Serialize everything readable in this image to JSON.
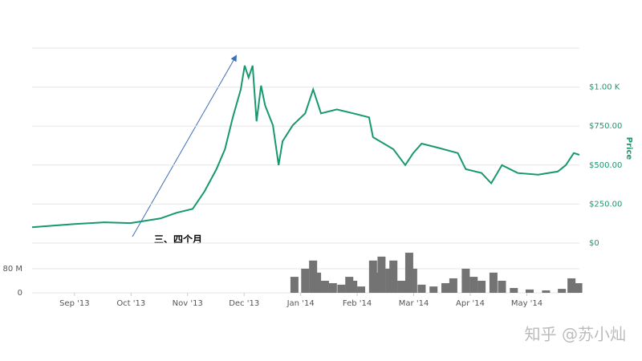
{
  "chart_data": [
    {
      "type": "line",
      "y_label": "Price",
      "annotation": "三、四个月",
      "color": "#17986e",
      "xlim": [
        -0.75,
        8.93
      ],
      "x": [
        -0.75,
        0,
        0.53,
        0.99,
        1.52,
        1.8,
        2.09,
        2.3,
        2.51,
        2.66,
        2.8,
        2.94,
        3.01,
        3.08,
        3.15,
        3.22,
        3.3,
        3.37,
        3.51,
        3.61,
        3.68,
        3.86,
        4.08,
        4.22,
        4.36,
        4.64,
        4.93,
        5.21,
        5.28,
        5.64,
        5.85,
        5.99,
        6.14,
        6.42,
        6.78,
        6.92,
        7.2,
        7.37,
        7.56,
        7.84,
        8.2,
        8.55,
        8.69,
        8.83,
        8.93
      ],
      "values": [
        102,
        122,
        133,
        128,
        158,
        194,
        219,
        332,
        474,
        602,
        806,
        985,
        1138,
        1061,
        1138,
        781,
        1010,
        883,
        755,
        500,
        653,
        755,
        832,
        985,
        832,
        857,
        832,
        806,
        679,
        602,
        500,
        577,
        638,
        612,
        577,
        474,
        449,
        383,
        500,
        449,
        439,
        459,
        500,
        577,
        566
      ],
      "ylim": [
        0,
        1250
      ],
      "yticks": [
        {
          "value": 0,
          "label": "$0"
        },
        {
          "value": 250,
          "label": "$250.00"
        },
        {
          "value": 500,
          "label": "$500.00"
        },
        {
          "value": 750,
          "label": "$750.00"
        },
        {
          "value": 1000,
          "label": "$1.00 K"
        }
      ]
    },
    {
      "type": "bar",
      "color": "#737373",
      "xlim": [
        -0.75,
        8.93
      ],
      "x": [
        3.89,
        4.08,
        4.22,
        4.29,
        4.43,
        4.57,
        4.72,
        4.86,
        4.93,
        5.07,
        5.28,
        5.36,
        5.43,
        5.57,
        5.64,
        5.78,
        5.92,
        5.99,
        6.14,
        6.35,
        6.56,
        6.7,
        6.92,
        7.06,
        7.2,
        7.41,
        7.56,
        7.77,
        8.05,
        8.34,
        8.62,
        8.79,
        8.91
      ],
      "values": [
        53,
        80,
        107,
        67,
        40,
        32,
        27,
        53,
        40,
        21,
        107,
        67,
        120,
        80,
        107,
        40,
        133,
        80,
        27,
        21,
        32,
        48,
        80,
        53,
        40,
        67,
        40,
        16,
        11,
        8,
        13,
        48,
        32
      ],
      "ylim": [
        0,
        165
      ],
      "yticks": [
        0,
        {
          "value": 80,
          "label": "80 M"
        }
      ],
      "xticks": [
        {
          "value": 0,
          "label": "Sep '13"
        },
        {
          "value": 1,
          "label": "Oct '13"
        },
        {
          "value": 2,
          "label": "Nov '13"
        },
        {
          "value": 3,
          "label": "Dec '13"
        },
        {
          "value": 4,
          "label": "Jan '14"
        },
        {
          "value": 5,
          "label": "Feb '14"
        },
        {
          "value": 6,
          "label": "Mar '14"
        },
        {
          "value": 7,
          "label": "Apr '14"
        },
        {
          "value": 8,
          "label": "May '14"
        }
      ]
    }
  ],
  "watermark": "知乎 @苏小灿"
}
